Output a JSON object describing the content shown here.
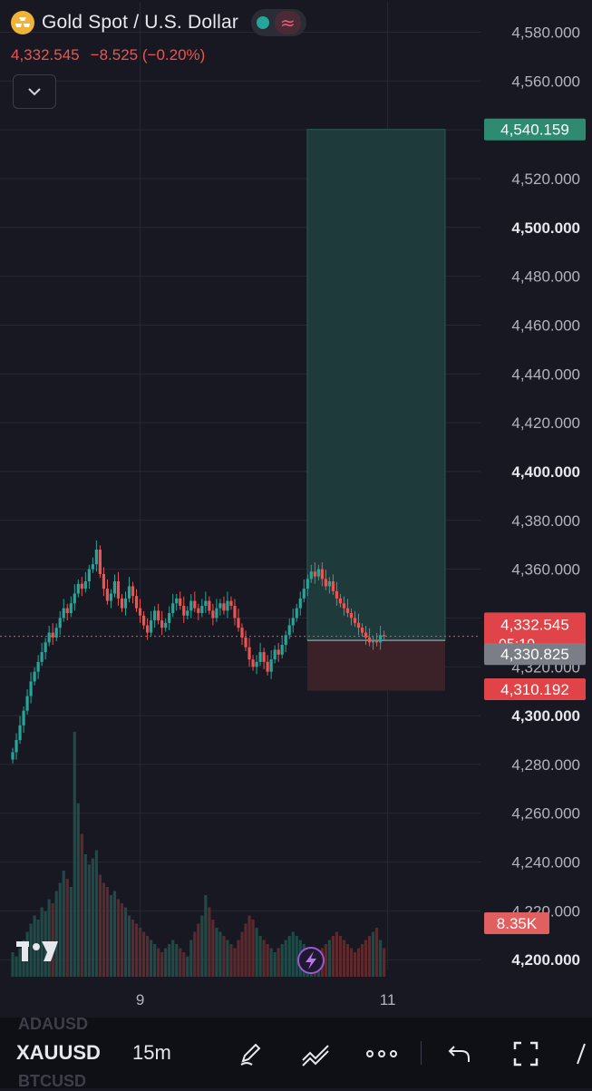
{
  "header": {
    "title": "Gold Spot / U.S. Dollar",
    "last": "4,332.545",
    "change": "−8.525",
    "change_pct": "(−0.20%)"
  },
  "chart_data": {
    "type": "candlestick",
    "symbol": "XAUUSD",
    "interval": "15m",
    "ylim": [
      4196,
      4585
    ],
    "y_ticks": [
      "4,580.000",
      "4,560.000",
      "4,540.000",
      "4,520.000",
      "4,500.000",
      "4,480.000",
      "4,460.000",
      "4,440.000",
      "4,420.000",
      "4,400.000",
      "4,380.000",
      "4,360.000",
      "4,340.000",
      "4,320.000",
      "4,300.000",
      "4,280.000",
      "4,260.000",
      "4,240.000",
      "4,220.000",
      "4,200.000"
    ],
    "y_tick_values": [
      4580,
      4560,
      4540,
      4520,
      4500,
      4480,
      4460,
      4440,
      4420,
      4400,
      4380,
      4360,
      4340,
      4320,
      4300,
      4280,
      4260,
      4240,
      4220,
      4200
    ],
    "x_ticks": [
      {
        "label": "9",
        "index": 35
      },
      {
        "label": "11",
        "index": 103
      }
    ],
    "x_range": [
      -1,
      126
    ],
    "close": [
      4285,
      4290,
      4296,
      4302,
      4308,
      4314,
      4318,
      4322,
      4326,
      4330,
      4334,
      4332,
      4336,
      4340,
      4344,
      4342,
      4346,
      4350,
      4354,
      4352,
      4355,
      4360,
      4362,
      4368,
      4358,
      4352,
      4347,
      4350,
      4355,
      4348,
      4344,
      4348,
      4353,
      4349,
      4344,
      4341,
      4337,
      4334,
      4339,
      4343,
      4339,
      4336,
      4338,
      4342,
      4346,
      4348,
      4345,
      4341,
      4343,
      4347,
      4344,
      4342,
      4345,
      4347,
      4343,
      4340,
      4344,
      4346,
      4343,
      4347,
      4345,
      4340,
      4336,
      4332,
      4328,
      4323,
      4320,
      4322,
      4326,
      4322,
      4318,
      4323,
      4327,
      4325,
      4329,
      4333,
      4337,
      4340,
      4344,
      4348,
      4352,
      4356,
      4359,
      4357,
      4360,
      4356,
      4353,
      4355,
      4351,
      4348,
      4346,
      4344,
      4342,
      4340,
      4338,
      4336,
      4334,
      4332,
      4330,
      4331,
      4330,
      4333,
      4332.5
    ],
    "volume": [
      12,
      10,
      14,
      18,
      22,
      26,
      30,
      28,
      34,
      32,
      38,
      36,
      42,
      46,
      52,
      48,
      44,
      120,
      85,
      70,
      60,
      55,
      58,
      62,
      50,
      46,
      44,
      40,
      42,
      38,
      36,
      34,
      30,
      28,
      26,
      24,
      22,
      20,
      18,
      16,
      14,
      12,
      14,
      16,
      18,
      16,
      14,
      12,
      10,
      18,
      22,
      26,
      30,
      40,
      34,
      28,
      24,
      22,
      20,
      18,
      16,
      14,
      18,
      22,
      26,
      30,
      28,
      24,
      20,
      18,
      16,
      14,
      12,
      14,
      16,
      18,
      20,
      22,
      20,
      18,
      16,
      14,
      12,
      10,
      12,
      14,
      16,
      18,
      20,
      22,
      20,
      18,
      16,
      14,
      12,
      14,
      16,
      18,
      20,
      22,
      24,
      18,
      14
    ],
    "trade": {
      "entry": 4330.825,
      "take_profit": 4540.159,
      "stop_loss": 4310.192
    },
    "price_labels": {
      "last": "4,332.545",
      "countdown": "05:10",
      "entry": "4,330.825",
      "take_profit": "4,540.159",
      "stop_loss": "4,310.192",
      "volume": "8.35K"
    },
    "colors": {
      "up": "#26a69a",
      "down": "#ef5350",
      "tp_zone": "#1e3a3a",
      "sl_zone": "#3b2229",
      "grid": "#262833",
      "text": "#b2b5be"
    }
  },
  "toolbar": {
    "symbol": "XAUUSD",
    "interval": "15m",
    "ghost_above": "ADAUSD",
    "ghost_below": "BTCUSD",
    "icons": [
      "pencil-icon",
      "trend-line-icon",
      "more-dots-icon",
      "undo-icon",
      "fullscreen-icon"
    ]
  }
}
